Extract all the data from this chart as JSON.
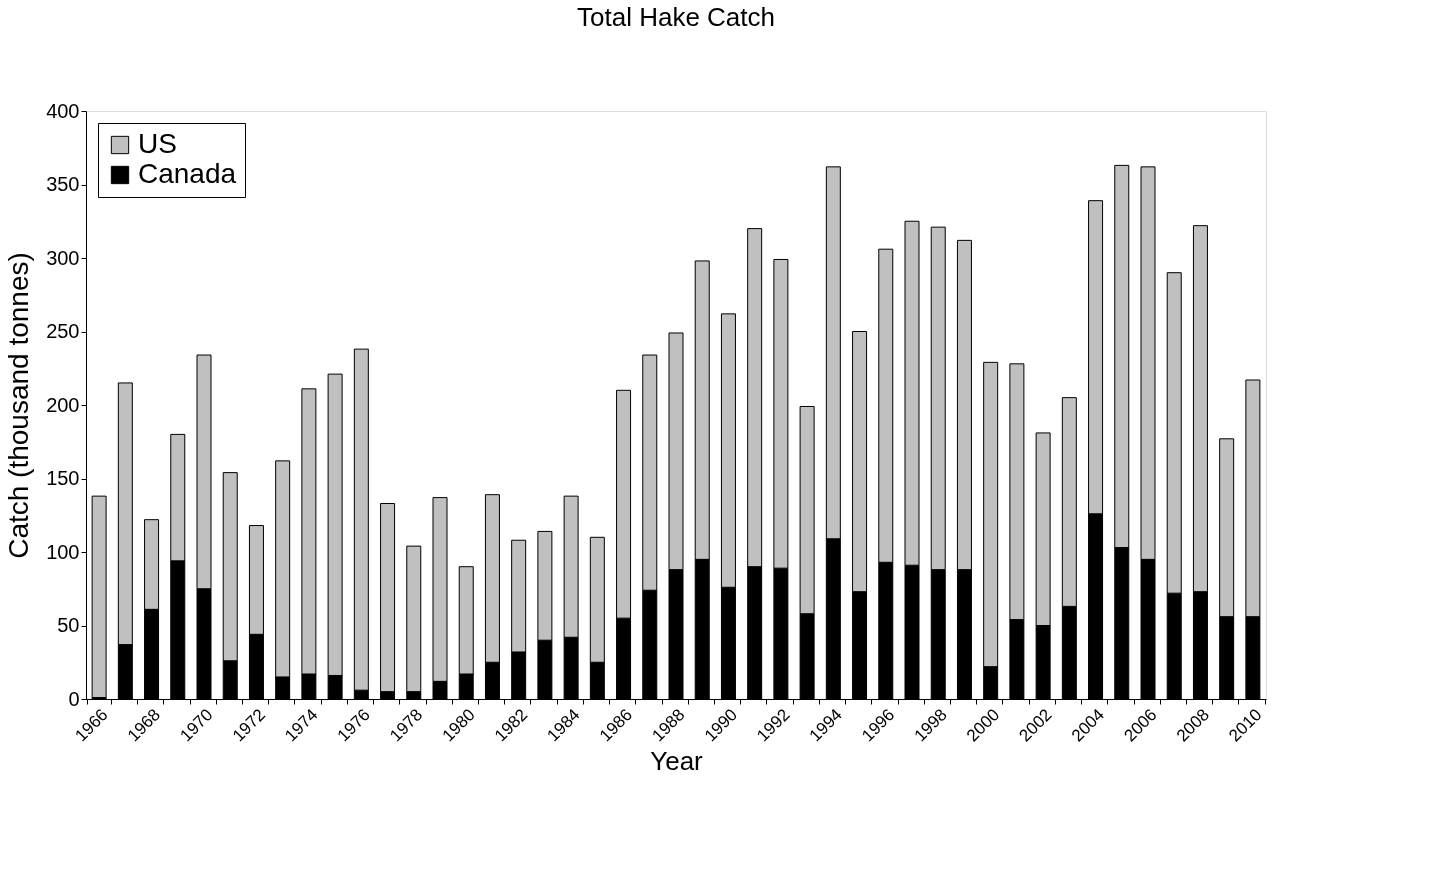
{
  "chart_data": {
    "type": "bar",
    "title": "Total Hake Catch",
    "xlabel": "Year",
    "ylabel": "Catch (thousand tonnes)",
    "categories": [
      "1966",
      null,
      "1968",
      null,
      "1970",
      null,
      "1972",
      null,
      "1974",
      null,
      "1976",
      null,
      "1978",
      null,
      "1980",
      null,
      "1982",
      null,
      "1984",
      null,
      "1986",
      null,
      "1988",
      null,
      "1990",
      null,
      "1992",
      null,
      "1994",
      null,
      "1996",
      null,
      "1998",
      null,
      "2000",
      null,
      "2002",
      null,
      "2004",
      null,
      "2006",
      null,
      "2008",
      null,
      "2010"
    ],
    "series": [
      {
        "name": "Canada",
        "color": "#000000",
        "values": [
          1,
          37,
          61,
          94,
          75,
          26,
          44,
          15,
          17,
          16,
          6,
          5,
          5,
          12,
          17,
          25,
          32,
          40,
          42,
          25,
          55,
          74,
          88,
          95,
          76,
          90,
          89,
          58,
          109,
          73,
          93,
          91,
          88,
          88,
          22,
          54,
          50,
          63,
          126,
          103,
          95,
          72,
          73,
          56,
          56
        ]
      },
      {
        "name": "US",
        "color": "#c0c0c0",
        "values": [
          137,
          178,
          61,
          86,
          159,
          128,
          74,
          147,
          194,
          205,
          232,
          128,
          99,
          125,
          73,
          114,
          76,
          74,
          96,
          85,
          155,
          160,
          161,
          203,
          186,
          230,
          210,
          141,
          253,
          177,
          213,
          234,
          233,
          224,
          207,
          174,
          131,
          142,
          213,
          260,
          267,
          218,
          249,
          121,
          161
        ]
      }
    ],
    "stacked": true,
    "ylim": [
      0,
      400
    ],
    "yticks": [
      0,
      50,
      100,
      150,
      200,
      250,
      300,
      350,
      400
    ],
    "grid": false,
    "legend": "top left"
  }
}
